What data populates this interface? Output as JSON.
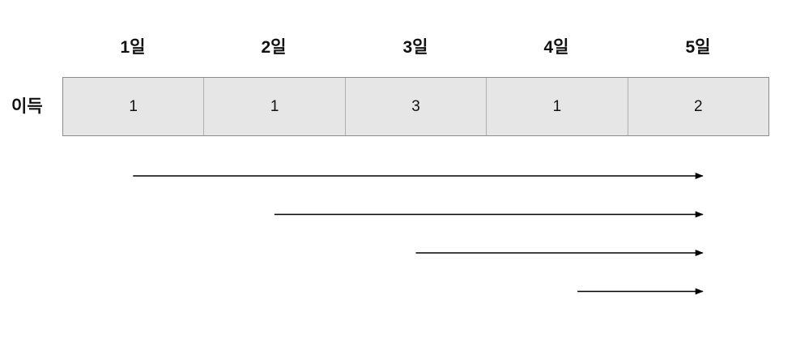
{
  "row_label": "이득",
  "days": [
    {
      "label": "1일",
      "value": "1"
    },
    {
      "label": "2일",
      "value": "1"
    },
    {
      "label": "3일",
      "value": "3"
    },
    {
      "label": "4일",
      "value": "1"
    },
    {
      "label": "5일",
      "value": "2"
    }
  ],
  "arrows": [
    {
      "from_day": 1,
      "to_day": 5
    },
    {
      "from_day": 2,
      "to_day": 5
    },
    {
      "from_day": 3,
      "to_day": 5
    },
    {
      "from_day": 4,
      "to_day": 5
    }
  ]
}
